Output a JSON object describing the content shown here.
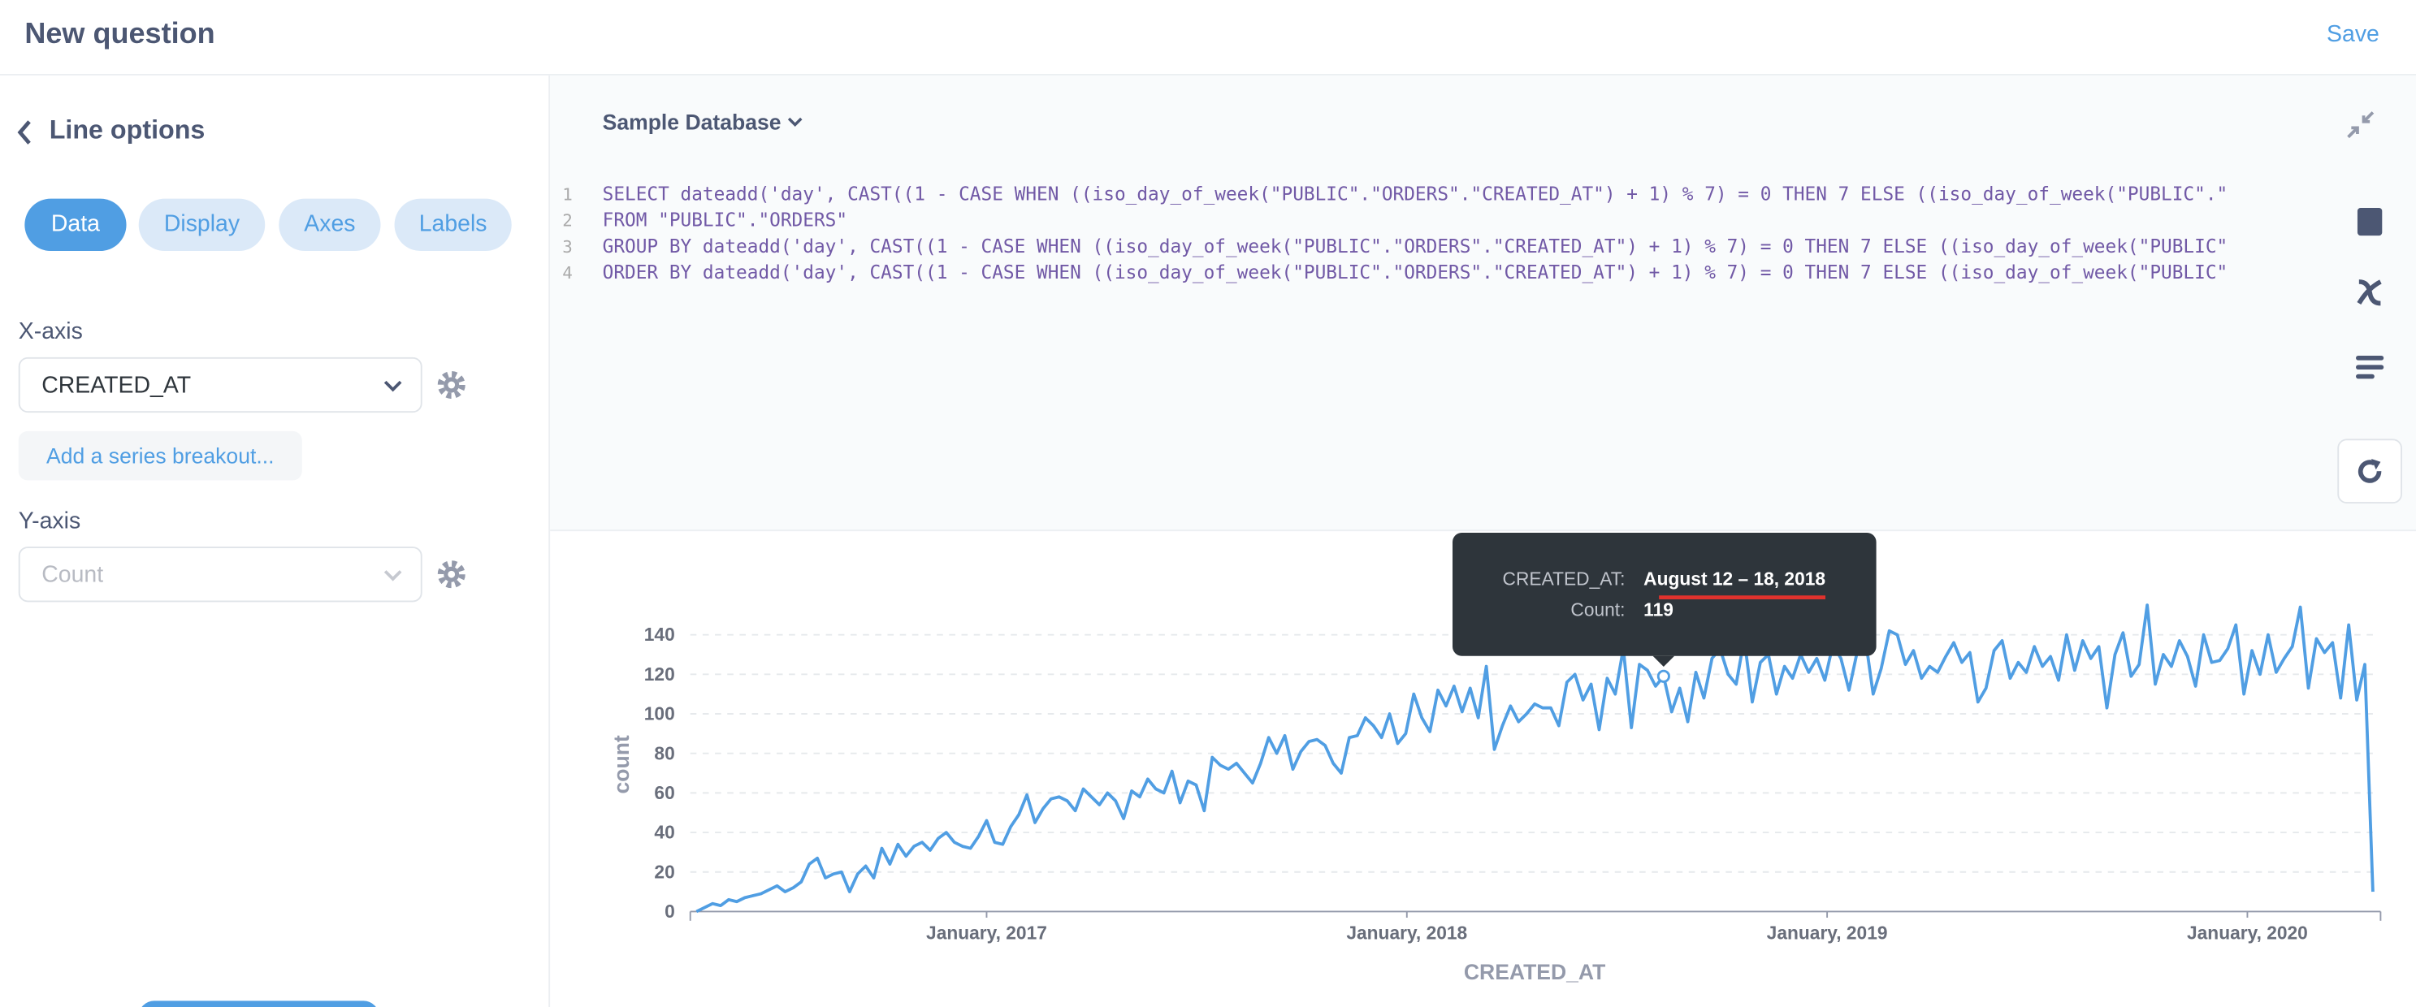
{
  "header": {
    "title": "New question",
    "save": "Save"
  },
  "sidebar": {
    "back_title": "Line options",
    "tabs": [
      "Data",
      "Display",
      "Axes",
      "Labels"
    ],
    "x_axis_label": "X-axis",
    "x_axis_value": "CREATED_AT",
    "breakout": "Add a series breakout...",
    "y_axis_label": "Y-axis",
    "y_axis_value": "Count"
  },
  "editor": {
    "database": "Sample Database",
    "line_numbers": [
      1,
      2,
      3,
      4
    ],
    "lines": [
      "SELECT dateadd('day', CAST((1 - CASE WHEN ((iso_day_of_week(\"PUBLIC\".\"ORDERS\".\"CREATED_AT\") + 1) % 7) = 0 THEN 7 ELSE ((iso_day_of_week(\"PUBLIC\".\"",
      "FROM \"PUBLIC\".\"ORDERS\"",
      "GROUP BY dateadd('day', CAST((1 - CASE WHEN ((iso_day_of_week(\"PUBLIC\".\"ORDERS\".\"CREATED_AT\") + 1) % 7) = 0 THEN 7 ELSE ((iso_day_of_week(\"PUBLIC\"",
      "ORDER BY dateadd('day', CAST((1 - CASE WHEN ((iso_day_of_week(\"PUBLIC\".\"ORDERS\".\"CREATED_AT\") + 1) % 7) = 0 THEN 7 ELSE ((iso_day_of_week(\"PUBLIC\""
    ]
  },
  "chart_data": {
    "type": "line",
    "xlabel": "CREATED_AT",
    "ylabel": "count",
    "x": [
      "2016-04-24",
      "2016-05-01",
      "2016-05-08",
      "2016-05-15",
      "2016-05-22",
      "2016-05-29",
      "2016-06-05",
      "2016-06-12",
      "2016-06-19",
      "2016-06-26",
      "2016-07-03",
      "2016-07-10",
      "2016-07-17",
      "2016-07-24",
      "2016-07-31",
      "2016-08-07",
      "2016-08-14",
      "2016-08-21",
      "2016-08-28",
      "2016-09-04",
      "2016-09-11",
      "2016-09-18",
      "2016-09-25",
      "2016-10-02",
      "2016-10-09",
      "2016-10-16",
      "2016-10-23",
      "2016-10-30",
      "2016-11-06",
      "2016-11-13",
      "2016-11-20",
      "2016-11-27",
      "2016-12-04",
      "2016-12-11",
      "2016-12-18",
      "2016-12-25",
      "2017-01-01",
      "2017-01-08",
      "2017-01-15",
      "2017-01-22",
      "2017-01-29",
      "2017-02-05",
      "2017-02-12",
      "2017-02-19",
      "2017-02-26",
      "2017-03-05",
      "2017-03-12",
      "2017-03-19",
      "2017-03-26",
      "2017-04-02",
      "2017-04-09",
      "2017-04-16",
      "2017-04-23",
      "2017-04-30",
      "2017-05-07",
      "2017-05-14",
      "2017-05-21",
      "2017-05-28",
      "2017-06-04",
      "2017-06-11",
      "2017-06-18",
      "2017-06-25",
      "2017-07-02",
      "2017-07-09",
      "2017-07-16",
      "2017-07-23",
      "2017-07-30",
      "2017-08-06",
      "2017-08-13",
      "2017-08-20",
      "2017-08-27",
      "2017-09-03",
      "2017-09-10",
      "2017-09-17",
      "2017-09-24",
      "2017-10-01",
      "2017-10-08",
      "2017-10-15",
      "2017-10-22",
      "2017-10-29",
      "2017-11-05",
      "2017-11-12",
      "2017-11-19",
      "2017-11-26",
      "2017-12-03",
      "2017-12-10",
      "2017-12-17",
      "2017-12-24",
      "2017-12-31",
      "2018-01-07",
      "2018-01-14",
      "2018-01-21",
      "2018-01-28",
      "2018-02-04",
      "2018-02-11",
      "2018-02-18",
      "2018-02-25",
      "2018-03-04",
      "2018-03-11",
      "2018-03-18",
      "2018-03-25",
      "2018-04-01",
      "2018-04-08",
      "2018-04-15",
      "2018-04-22",
      "2018-04-29",
      "2018-05-06",
      "2018-05-13",
      "2018-05-20",
      "2018-05-27",
      "2018-06-03",
      "2018-06-10",
      "2018-06-17",
      "2018-06-24",
      "2018-07-01",
      "2018-07-08",
      "2018-07-15",
      "2018-07-22",
      "2018-07-29",
      "2018-08-05",
      "2018-08-12",
      "2018-08-19",
      "2018-08-26",
      "2018-09-02",
      "2018-09-09",
      "2018-09-16",
      "2018-09-23",
      "2018-09-30",
      "2018-10-07",
      "2018-10-14",
      "2018-10-21",
      "2018-10-28",
      "2018-11-04",
      "2018-11-11",
      "2018-11-18",
      "2018-11-25",
      "2018-12-02",
      "2018-12-09",
      "2018-12-16",
      "2018-12-23",
      "2018-12-30",
      "2019-01-06",
      "2019-01-13",
      "2019-01-20",
      "2019-01-27",
      "2019-02-03",
      "2019-02-10",
      "2019-02-17",
      "2019-02-24",
      "2019-03-03",
      "2019-03-10",
      "2019-03-17",
      "2019-03-24",
      "2019-03-31",
      "2019-04-07",
      "2019-04-14",
      "2019-04-21",
      "2019-04-28",
      "2019-05-05",
      "2019-05-12",
      "2019-05-19",
      "2019-05-26",
      "2019-06-02",
      "2019-06-09",
      "2019-06-16",
      "2019-06-23",
      "2019-06-30",
      "2019-07-07",
      "2019-07-14",
      "2019-07-21",
      "2019-07-28",
      "2019-08-04",
      "2019-08-11",
      "2019-08-18",
      "2019-08-25",
      "2019-09-01",
      "2019-09-08",
      "2019-09-15",
      "2019-09-22",
      "2019-09-29",
      "2019-10-06",
      "2019-10-13",
      "2019-10-20",
      "2019-10-27",
      "2019-11-03",
      "2019-11-10",
      "2019-11-17",
      "2019-11-24",
      "2019-12-01",
      "2019-12-08",
      "2019-12-15",
      "2019-12-22",
      "2019-12-29",
      "2020-01-05",
      "2020-01-12",
      "2020-01-19",
      "2020-01-26",
      "2020-02-02",
      "2020-02-09",
      "2020-02-16",
      "2020-02-23",
      "2020-03-01",
      "2020-03-08",
      "2020-03-15",
      "2020-03-22",
      "2020-03-29",
      "2020-04-05",
      "2020-04-12",
      "2020-04-19"
    ],
    "series": [
      {
        "name": "count",
        "color": "#509ee3",
        "values": [
          0,
          2,
          4,
          3,
          6,
          5,
          7,
          8,
          9,
          11,
          13,
          10,
          12,
          15,
          24,
          27,
          17,
          19,
          20,
          10,
          19,
          23,
          17,
          32,
          24,
          34,
          28,
          33,
          35,
          31,
          37,
          40,
          35,
          33,
          32,
          38,
          46,
          35,
          34,
          43,
          49,
          59,
          45,
          52,
          57,
          58,
          56,
          51,
          62,
          58,
          54,
          60,
          56,
          47,
          61,
          58,
          67,
          62,
          60,
          71,
          55,
          66,
          64,
          51,
          78,
          74,
          72,
          75,
          70,
          65,
          75,
          88,
          80,
          89,
          72,
          81,
          86,
          87,
          84,
          75,
          70,
          88,
          89,
          98,
          94,
          88,
          100,
          85,
          90,
          110,
          98,
          91,
          112,
          104,
          114,
          101,
          113,
          98,
          124,
          82,
          94,
          104,
          96,
          100,
          105,
          103,
          103,
          94,
          116,
          120,
          107,
          115,
          92,
          118,
          110,
          133,
          93,
          125,
          122,
          114,
          119,
          101,
          113,
          96,
          121,
          108,
          128,
          133,
          120,
          115,
          138,
          106,
          126,
          130,
          110,
          124,
          118,
          130,
          121,
          128,
          117,
          135,
          128,
          112,
          131,
          139,
          110,
          123,
          142,
          140,
          125,
          132,
          118,
          124,
          121,
          129,
          136,
          126,
          131,
          106,
          113,
          132,
          137,
          118,
          126,
          121,
          134,
          124,
          129,
          117,
          140,
          122,
          137,
          128,
          134,
          103,
          130,
          141,
          119,
          125,
          155,
          115,
          130,
          124,
          137,
          129,
          114,
          140,
          126,
          127,
          133,
          145,
          110,
          132,
          120,
          140,
          121,
          128,
          134,
          154,
          113,
          138,
          131,
          136,
          108,
          145,
          107,
          125,
          10
        ]
      }
    ],
    "xlim": [
      "2016-04-24",
      "2020-04-19"
    ],
    "xticks": [
      {
        "value": "2017-01-01",
        "label": "January, 2017"
      },
      {
        "value": "2018-01-01",
        "label": "January, 2018"
      },
      {
        "value": "2019-01-01",
        "label": "January, 2019"
      },
      {
        "value": "2020-01-01",
        "label": "January, 2020"
      }
    ],
    "ylim": [
      0,
      155
    ],
    "yticks": [
      0,
      20,
      40,
      60,
      80,
      100,
      120,
      140
    ],
    "grid": true,
    "tooltip": {
      "x_label": "CREATED_AT:",
      "x_value": "August 12 – 18, 2018",
      "y_label": "Count:",
      "y_value": 119,
      "index": 120
    }
  }
}
